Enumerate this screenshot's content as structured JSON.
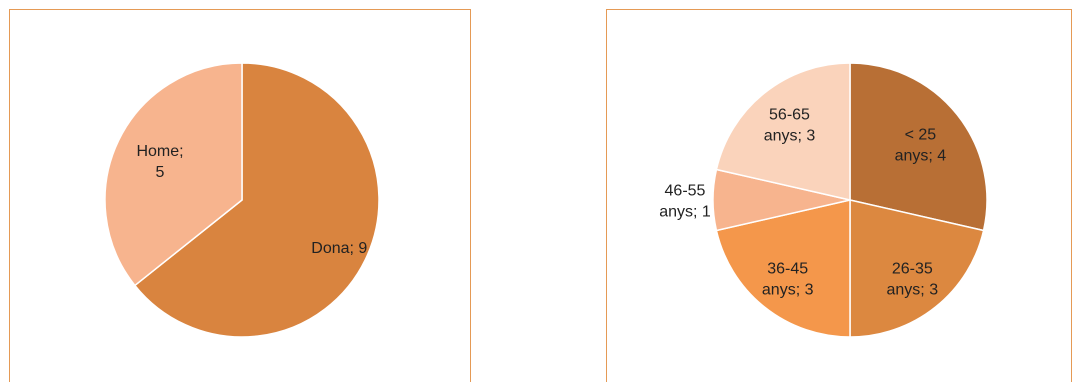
{
  "chart_data": [
    {
      "type": "pie",
      "categories": [
        "Dona",
        "Home"
      ],
      "values": [
        9,
        5
      ],
      "colors": [
        "#d9843f",
        "#f7b48e"
      ],
      "labels": [
        [
          "Dona; 9"
        ],
        [
          "Home;",
          "5"
        ]
      ],
      "start_angle_deg": 0,
      "title": "",
      "legend": "none"
    },
    {
      "type": "pie",
      "categories": [
        "< 25 anys",
        "26-35 anys",
        "36-45 anys",
        "46-55 anys",
        "56-65 anys"
      ],
      "values": [
        4,
        3,
        3,
        1,
        3
      ],
      "colors": [
        "#b86f35",
        "#dc8840",
        "#f4974b",
        "#f7b48e",
        "#fad3bb"
      ],
      "labels": [
        [
          "< 25",
          "anys; 4"
        ],
        [
          "26-35",
          "anys; 3"
        ],
        [
          "36-45",
          "anys; 3"
        ],
        [
          "46-55",
          "anys; 1"
        ],
        [
          "56-65",
          "anys; 3"
        ]
      ],
      "start_angle_deg": 0,
      "title": "",
      "legend": "none"
    }
  ]
}
